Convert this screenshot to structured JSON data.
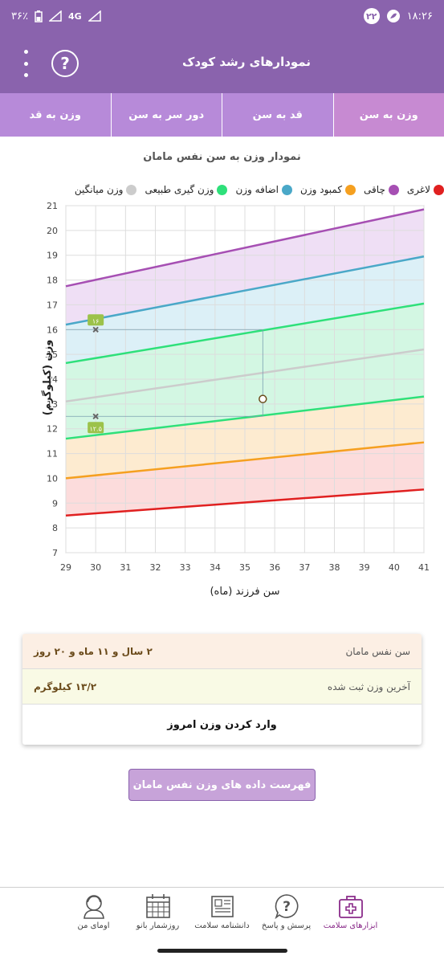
{
  "status_bar": {
    "time": "۱۸:۲۶",
    "notification_count": "۲۲",
    "battery": "۳۶٪",
    "network": "4G"
  },
  "app_bar": {
    "title": "نمودارهای رشد کودک",
    "help_icon": "help-circle-icon",
    "menu_icon": "more-vertical-icon"
  },
  "tabs": [
    {
      "label": "وزن به سن",
      "active": true
    },
    {
      "label": "قد به سن",
      "active": false
    },
    {
      "label": "دور سر به سن",
      "active": false
    },
    {
      "label": "وزن به قد",
      "active": false
    }
  ],
  "chart_title": "نمودار وزن به سن نفس مامان",
  "legend": [
    {
      "label": "لاغری",
      "color": "#e02020"
    },
    {
      "label": "چاقی",
      "color": "#a64fb3"
    },
    {
      "label": "کمبود وزن",
      "color": "#f5a020"
    },
    {
      "label": "اضافه وزن",
      "color": "#4aa8c8"
    },
    {
      "label": "وزن گیری طبیعی",
      "color": "#2ee07a"
    },
    {
      "label": "وزن میانگین",
      "color": "#cccccc"
    }
  ],
  "chart_data": {
    "type": "line",
    "xlabel": "سن فرزند (ماه)",
    "ylabel": "وزن (کیلوگرم)",
    "xlim": [
      29,
      41
    ],
    "ylim": [
      7,
      21
    ],
    "xticks": [
      29,
      30,
      31,
      32,
      33,
      34,
      35,
      36,
      37,
      38,
      39,
      40,
      41
    ],
    "yticks": [
      7,
      8,
      9,
      10,
      11,
      12,
      13,
      14,
      15,
      16,
      17,
      18,
      19,
      20,
      21
    ],
    "series": [
      {
        "name": "لاغری",
        "color": "#e02020",
        "x": [
          29,
          41
        ],
        "y": [
          8.5,
          9.55
        ]
      },
      {
        "name": "کمبود وزن",
        "color": "#f5a020",
        "x": [
          29,
          41
        ],
        "y": [
          10.0,
          11.45
        ]
      },
      {
        "name": "وزن گیری طبیعی",
        "color": "#2ee07a",
        "x": [
          29,
          41
        ],
        "y": [
          11.6,
          13.3
        ]
      },
      {
        "name": "وزن میانگین",
        "color": "#cccccc",
        "x": [
          29,
          41
        ],
        "y": [
          13.1,
          15.2
        ]
      },
      {
        "name": "وزن گیری طبیعی",
        "color": "#2ee07a",
        "x": [
          29,
          41
        ],
        "y": [
          14.65,
          17.05
        ]
      },
      {
        "name": "اضافه وزن",
        "color": "#4aa8c8",
        "x": [
          29,
          41
        ],
        "y": [
          16.2,
          18.95
        ]
      },
      {
        "name": "چاقی",
        "color": "#a64fb3",
        "x": [
          29,
          41
        ],
        "y": [
          17.75,
          20.85
        ]
      }
    ],
    "bands": [
      {
        "color": "#fcdcdc",
        "lower": 0,
        "upper": 1
      },
      {
        "color": "#fdebd0",
        "lower": 1,
        "upper": 2
      },
      {
        "color": "#d3f7e3",
        "lower": 2,
        "upper": 4
      },
      {
        "color": "#dcf0f7",
        "lower": 4,
        "upper": 5
      },
      {
        "color": "#efdff5",
        "lower": 5,
        "upper": 6
      }
    ],
    "markers": [
      {
        "x": 30,
        "y": 16.0,
        "label": "۱۶"
      },
      {
        "x": 30,
        "y": 12.5,
        "label": "۱۲.۵"
      }
    ],
    "current_point": {
      "x": 35.6,
      "y": 13.2
    },
    "guide": {
      "x": 35.6,
      "y_top": 16.0,
      "y_bottom": 12.5
    }
  },
  "info": {
    "age_label": "سن نفس مامان",
    "age_value": "۲ سال و ۱۱ ماه و ۲۰ روز",
    "weight_label": "آخرین وزن ثبت شده",
    "weight_value": "۱۳/۲ کیلوگرم",
    "action_label": "وارد کردن وزن امروز"
  },
  "list_button": "فهرست داده های وزن نفس مامان",
  "bottom_nav": [
    {
      "label": "ابزارهای سلامت",
      "icon": "medical-kit-icon",
      "active": true
    },
    {
      "label": "پرسش و پاسخ",
      "icon": "question-bubble-icon",
      "active": false
    },
    {
      "label": "دانشنامه سلامت",
      "icon": "encyclopedia-icon",
      "active": false
    },
    {
      "label": "روزشمار بانو",
      "icon": "calendar-icon",
      "active": false
    },
    {
      "label": "اومای من",
      "icon": "profile-icon",
      "active": false
    }
  ]
}
